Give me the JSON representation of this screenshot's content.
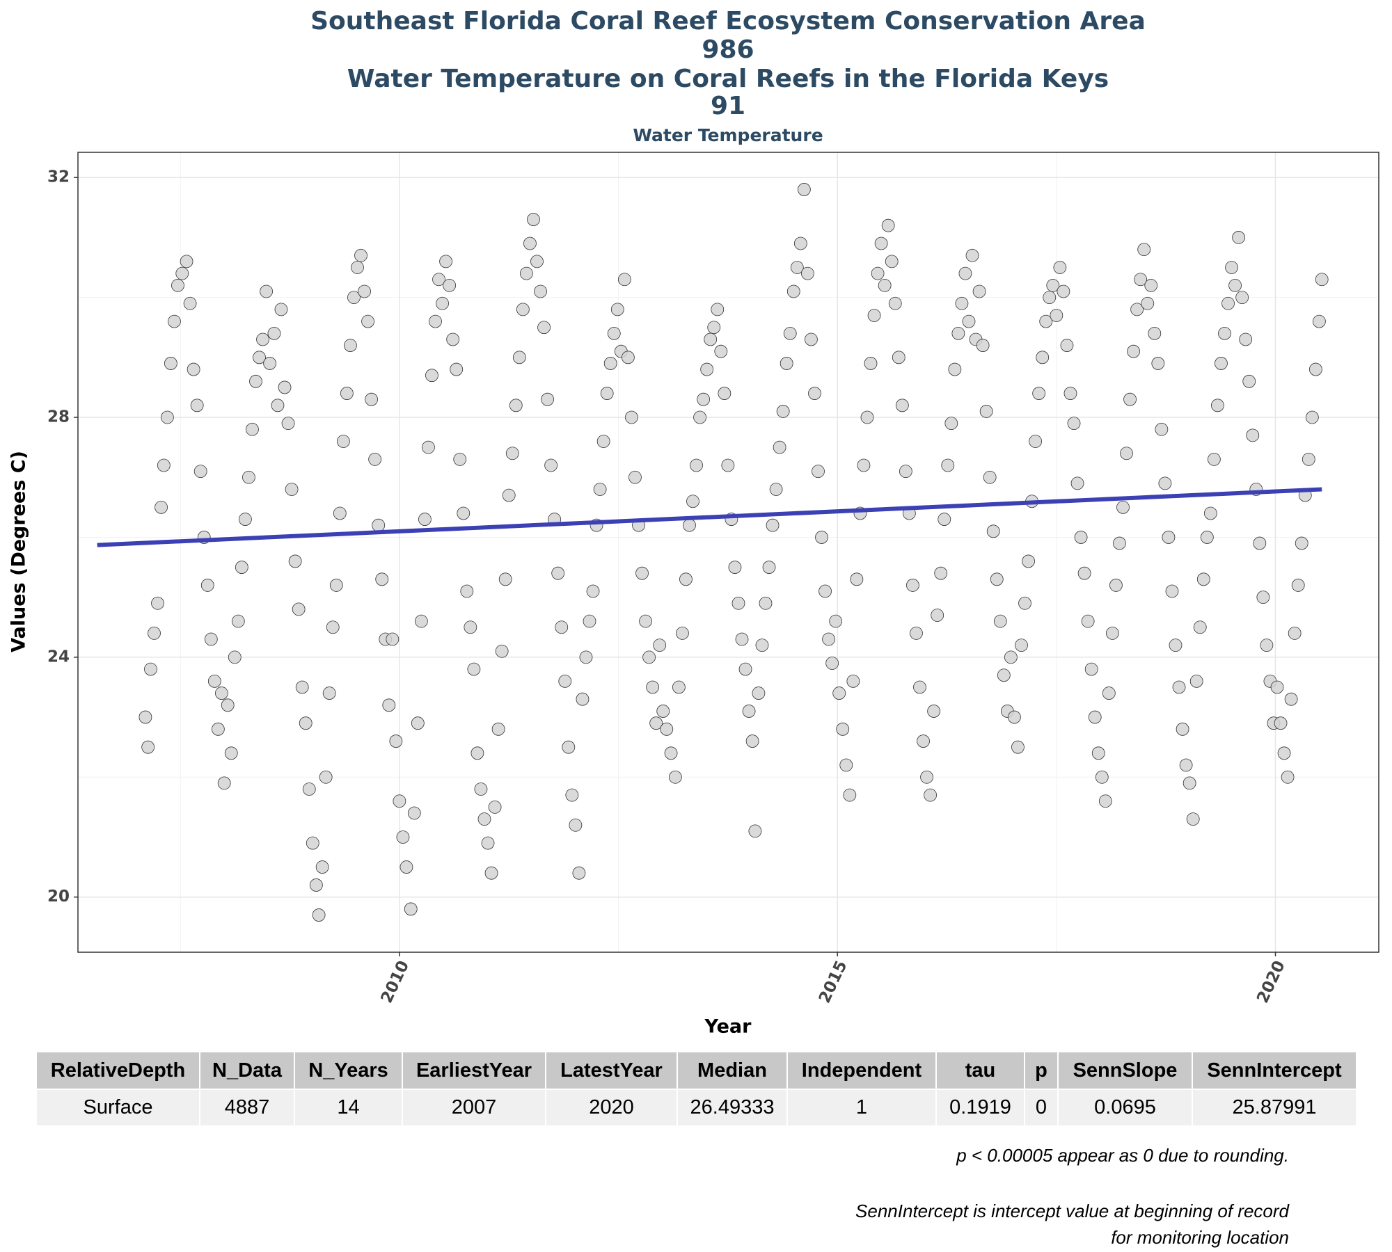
{
  "chart_data": {
    "type": "scatter",
    "title": [
      "Southeast Florida Coral Reef Ecosystem Conservation Area",
      "986",
      "Water Temperature on Coral Reefs in the Florida Keys",
      "91"
    ],
    "subtitle": "Water Temperature",
    "xlabel": "Year",
    "ylabel": "Values (Degrees C)",
    "xlim": [
      2006.33,
      2021.18
    ],
    "ylim": [
      19.08,
      32.42
    ],
    "xticks": [
      2010,
      2015,
      2020
    ],
    "yticks": [
      20,
      24,
      28,
      32
    ],
    "xminor": [
      2007.5,
      2012.5,
      2017.5
    ],
    "yminor": [
      22,
      26,
      30
    ],
    "grid": true,
    "color": "#d3d3d3",
    "trend": {
      "color": "#3b40b4",
      "x": [
        2006.55,
        2020.53
      ],
      "y": [
        25.87,
        26.8
      ]
    },
    "x": [
      2007.1,
      2007.13,
      2007.16,
      2007.2,
      2007.24,
      2007.28,
      2007.31,
      2007.35,
      2007.39,
      2007.43,
      2007.47,
      2007.52,
      2007.57,
      2007.61,
      2007.65,
      2007.69,
      2007.73,
      2007.77,
      2007.81,
      2007.85,
      2007.89,
      2007.93,
      2007.97,
      2008.0,
      2008.04,
      2008.08,
      2008.12,
      2008.16,
      2008.2,
      2008.24,
      2008.28,
      2008.32,
      2008.36,
      2008.4,
      2008.44,
      2008.48,
      2008.52,
      2008.57,
      2008.61,
      2008.65,
      2008.69,
      2008.73,
      2008.77,
      2008.81,
      2008.85,
      2008.89,
      2008.93,
      2008.97,
      2009.01,
      2009.05,
      2009.08,
      2009.12,
      2009.16,
      2009.2,
      2009.24,
      2009.28,
      2009.32,
      2009.36,
      2009.4,
      2009.44,
      2009.48,
      2009.52,
      2009.56,
      2009.6,
      2009.64,
      2009.68,
      2009.72,
      2009.76,
      2009.8,
      2009.84,
      2009.88,
      2009.92,
      2009.96,
      2010.0,
      2010.04,
      2010.08,
      2010.13,
      2010.17,
      2010.21,
      2010.25,
      2010.29,
      2010.33,
      2010.37,
      2010.41,
      2010.45,
      2010.49,
      2010.53,
      2010.57,
      2010.61,
      2010.65,
      2010.69,
      2010.73,
      2010.77,
      2010.81,
      2010.85,
      2010.89,
      2010.93,
      2010.97,
      2011.01,
      2011.05,
      2011.09,
      2011.13,
      2011.17,
      2011.21,
      2011.25,
      2011.29,
      2011.33,
      2011.37,
      2011.41,
      2011.45,
      2011.49,
      2011.53,
      2011.57,
      2011.61,
      2011.65,
      2011.69,
      2011.73,
      2011.77,
      2011.81,
      2011.85,
      2011.89,
      2011.93,
      2011.97,
      2012.01,
      2012.05,
      2012.09,
      2012.13,
      2012.17,
      2012.21,
      2012.25,
      2012.29,
      2012.33,
      2012.37,
      2012.41,
      2012.45,
      2012.49,
      2012.53,
      2012.57,
      2012.61,
      2012.65,
      2012.69,
      2012.73,
      2012.77,
      2012.81,
      2012.85,
      2012.89,
      2012.93,
      2012.97,
      2013.01,
      2013.05,
      2013.1,
      2013.15,
      2013.19,
      2013.23,
      2013.27,
      2013.31,
      2013.35,
      2013.39,
      2013.43,
      2013.47,
      2013.51,
      2013.55,
      2013.59,
      2013.63,
      2013.67,
      2013.71,
      2013.75,
      2013.79,
      2013.83,
      2013.87,
      2013.91,
      2013.95,
      2013.99,
      2014.03,
      2014.06,
      2014.1,
      2014.14,
      2014.18,
      2014.22,
      2014.26,
      2014.3,
      2014.34,
      2014.38,
      2014.42,
      2014.46,
      2014.5,
      2014.54,
      2014.58,
      2014.62,
      2014.66,
      2014.7,
      2014.74,
      2014.78,
      2014.82,
      2014.86,
      2014.9,
      2014.94,
      2014.98,
      2015.02,
      2015.06,
      2015.1,
      2015.14,
      2015.18,
      2015.22,
      2015.26,
      2015.3,
      2015.34,
      2015.38,
      2015.42,
      2015.46,
      2015.5,
      2015.54,
      2015.58,
      2015.62,
      2015.66,
      2015.7,
      2015.74,
      2015.78,
      2015.82,
      2015.86,
      2015.9,
      2015.94,
      2015.98,
      2016.02,
      2016.06,
      2016.1,
      2016.14,
      2016.18,
      2016.22,
      2016.26,
      2016.3,
      2016.34,
      2016.38,
      2016.42,
      2016.46,
      2016.5,
      2016.54,
      2016.58,
      2016.62,
      2016.66,
      2016.7,
      2016.74,
      2016.78,
      2016.82,
      2016.86,
      2016.9,
      2016.94,
      2016.98,
      2017.02,
      2017.06,
      2017.1,
      2017.14,
      2017.18,
      2017.22,
      2017.26,
      2017.3,
      2017.34,
      2017.38,
      2017.42,
      2017.46,
      2017.5,
      2017.54,
      2017.58,
      2017.62,
      2017.66,
      2017.7,
      2017.74,
      2017.78,
      2017.82,
      2017.86,
      2017.9,
      2017.94,
      2017.98,
      2018.02,
      2018.06,
      2018.1,
      2018.14,
      2018.18,
      2018.22,
      2018.26,
      2018.3,
      2018.34,
      2018.38,
      2018.42,
      2018.46,
      2018.5,
      2018.54,
      2018.58,
      2018.62,
      2018.66,
      2018.7,
      2018.74,
      2018.78,
      2018.82,
      2018.86,
      2018.9,
      2018.94,
      2018.98,
      2019.02,
      2019.06,
      2019.1,
      2019.14,
      2019.18,
      2019.22,
      2019.26,
      2019.3,
      2019.34,
      2019.38,
      2019.42,
      2019.46,
      2019.5,
      2019.54,
      2019.58,
      2019.62,
      2019.66,
      2019.7,
      2019.74,
      2019.78,
      2019.82,
      2019.86,
      2019.9,
      2019.94,
      2019.98,
      2020.02,
      2020.06,
      2020.1,
      2020.14,
      2020.18,
      2020.22,
      2020.26,
      2020.3,
      2020.34,
      2020.38,
      2020.42,
      2020.46,
      2020.5,
      2020.53
    ],
    "values": [
      23.0,
      22.5,
      23.8,
      24.4,
      24.9,
      26.5,
      27.2,
      28.0,
      28.9,
      29.6,
      30.2,
      30.4,
      30.6,
      29.9,
      28.8,
      28.2,
      27.1,
      26.0,
      25.2,
      24.3,
      23.6,
      22.8,
      23.4,
      21.9,
      23.2,
      22.4,
      24.0,
      24.6,
      25.5,
      26.3,
      27.0,
      27.8,
      28.6,
      29.0,
      29.3,
      30.1,
      28.9,
      29.4,
      28.2,
      29.8,
      28.5,
      27.9,
      26.8,
      25.6,
      24.8,
      23.5,
      22.9,
      21.8,
      20.9,
      20.2,
      19.7,
      20.5,
      22.0,
      23.4,
      24.5,
      25.2,
      26.4,
      27.6,
      28.4,
      29.2,
      30.0,
      30.5,
      30.7,
      30.1,
      29.6,
      28.3,
      27.3,
      26.2,
      25.3,
      24.3,
      23.2,
      24.3,
      22.6,
      21.6,
      21.0,
      20.5,
      19.8,
      21.4,
      22.9,
      24.6,
      26.3,
      27.5,
      28.7,
      29.6,
      30.3,
      29.9,
      30.6,
      30.2,
      29.3,
      28.8,
      27.3,
      26.4,
      25.1,
      24.5,
      23.8,
      22.4,
      21.8,
      21.3,
      20.9,
      20.4,
      21.5,
      22.8,
      24.1,
      25.3,
      26.7,
      27.4,
      28.2,
      29.0,
      29.8,
      30.4,
      30.9,
      31.3,
      30.6,
      30.1,
      29.5,
      28.3,
      27.2,
      26.3,
      25.4,
      24.5,
      23.6,
      22.5,
      21.7,
      21.2,
      20.4,
      23.3,
      24.0,
      24.6,
      25.1,
      26.2,
      26.8,
      27.6,
      28.4,
      28.9,
      29.4,
      29.8,
      29.1,
      30.3,
      29.0,
      28.0,
      27.0,
      26.2,
      25.4,
      24.6,
      24.0,
      23.5,
      22.9,
      24.2,
      23.1,
      22.8,
      22.4,
      22.0,
      23.5,
      24.4,
      25.3,
      26.2,
      26.6,
      27.2,
      28.0,
      28.3,
      28.8,
      29.3,
      29.5,
      29.8,
      29.1,
      28.4,
      27.2,
      26.3,
      25.5,
      24.9,
      24.3,
      23.8,
      23.1,
      22.6,
      21.1,
      23.4,
      24.2,
      24.9,
      25.5,
      26.2,
      26.8,
      27.5,
      28.1,
      28.9,
      29.4,
      30.1,
      30.5,
      30.9,
      31.8,
      30.4,
      29.3,
      28.4,
      27.1,
      26.0,
      25.1,
      24.3,
      23.9,
      24.6,
      23.4,
      22.8,
      22.2,
      21.7,
      23.6,
      25.3,
      26.4,
      27.2,
      28.0,
      28.9,
      29.7,
      30.4,
      30.9,
      30.2,
      31.2,
      30.6,
      29.9,
      29.0,
      28.2,
      27.1,
      26.4,
      25.2,
      24.4,
      23.5,
      22.6,
      22.0,
      21.7,
      23.1,
      24.7,
      25.4,
      26.3,
      27.2,
      27.9,
      28.8,
      29.4,
      29.9,
      30.4,
      29.6,
      30.7,
      29.3,
      30.1,
      29.2,
      28.1,
      27.0,
      26.1,
      25.3,
      24.6,
      23.7,
      23.1,
      24.0,
      23.0,
      22.5,
      24.2,
      24.9,
      25.6,
      26.6,
      27.6,
      28.4,
      29.0,
      29.6,
      30.0,
      30.2,
      29.7,
      30.5,
      30.1,
      29.2,
      28.4,
      27.9,
      26.9,
      26.0,
      25.4,
      24.6,
      23.8,
      23.0,
      22.4,
      22.0,
      21.6,
      23.4,
      24.4,
      25.2,
      25.9,
      26.5,
      27.4,
      28.3,
      29.1,
      29.8,
      30.3,
      30.8,
      29.9,
      30.2,
      29.4,
      28.9,
      27.8,
      26.9,
      26.0,
      25.1,
      24.2,
      23.5,
      22.8,
      22.2,
      21.9,
      21.3,
      23.6,
      24.5,
      25.3,
      26.0,
      26.4,
      27.3,
      28.2,
      28.9,
      29.4,
      29.9,
      30.5,
      30.2,
      31.0,
      30.0,
      29.3,
      28.6,
      27.7,
      26.8,
      25.9,
      25.0,
      24.2,
      23.6,
      22.9,
      23.5,
      22.9,
      22.4,
      22.0,
      23.3,
      24.4,
      25.2,
      25.9,
      26.7,
      27.3,
      28.0,
      28.8,
      29.6,
      30.3
    ]
  },
  "table": {
    "columns": [
      "RelativeDepth",
      "N_Data",
      "N_Years",
      "EarliestYear",
      "LatestYear",
      "Median",
      "Independent",
      "tau",
      "p",
      "SennSlope",
      "SennIntercept"
    ],
    "rows": [
      [
        "Surface",
        4887,
        14,
        2007,
        2020,
        26.49333,
        1,
        0.1919,
        0,
        0.0695,
        25.87991
      ]
    ]
  },
  "notes": [
    "p < 0.00005 appear as 0 due to rounding.",
    "SennIntercept is intercept value at beginning of record for monitoring location"
  ]
}
